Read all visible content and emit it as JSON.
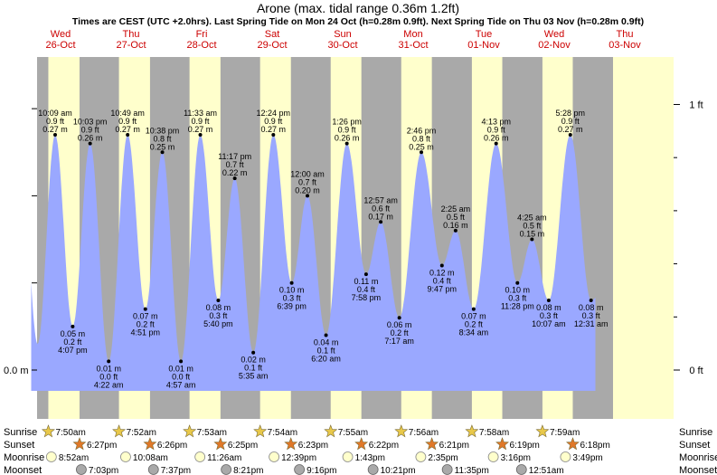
{
  "title": "Arone (max. tidal range 0.36m 1.2ft)",
  "subtitle": "Times are CEST (UTC +2.0hrs). Last Spring Tide on Mon 24 Oct (h=0.28m 0.9ft). Next Spring Tide on Thu 03 Nov (h=0.28m 0.9ft)",
  "colors": {
    "night": "#a9a9a9",
    "day": "#ffffcc",
    "tide": "#9aa8ff",
    "date_text": "#cc0000",
    "sun_fill": "#e8c84a",
    "sunset_fill": "#e07828",
    "moon_fill": "#ffffcc",
    "moonset_fill": "#a9a9a9"
  },
  "chart_data": {
    "type": "area",
    "title": "Arone (max. tidal range 0.36m 1.2ft)",
    "x_unit": "hours since Wed 26-Oct 00:00 CEST",
    "ylabel_left": "0.0 m",
    "right_axis_labels": [
      "1 ft",
      "0 ft"
    ],
    "ylim_m": [
      -0.05,
      0.36
    ],
    "grid": false,
    "days": [
      {
        "weekday": "Wed",
        "date": "26-Oct",
        "sunrise": "7:50am",
        "sunset": "6:27pm",
        "moonrise": "8:52am",
        "moonset": "7:03pm"
      },
      {
        "weekday": "Thu",
        "date": "27-Oct",
        "sunrise": "7:52am",
        "sunset": "6:26pm",
        "moonrise": "10:08am",
        "moonset": "7:37pm"
      },
      {
        "weekday": "Fri",
        "date": "28-Oct",
        "sunrise": "7:53am",
        "sunset": "6:25pm",
        "moonrise": "11:26am",
        "moonset": "8:21pm"
      },
      {
        "weekday": "Sat",
        "date": "29-Oct",
        "sunrise": "7:54am",
        "sunset": "6:23pm",
        "moonrise": "12:39pm",
        "moonset": "9:16pm"
      },
      {
        "weekday": "Sun",
        "date": "30-Oct",
        "sunrise": "7:55am",
        "sunset": "6:22pm",
        "moonrise": "1:43pm",
        "moonset": "10:21pm"
      },
      {
        "weekday": "Mon",
        "date": "31-Oct",
        "sunrise": "7:56am",
        "sunset": "6:21pm",
        "moonrise": "2:35pm",
        "moonset": "11:35pm"
      },
      {
        "weekday": "Tue",
        "date": "01-Nov",
        "sunrise": "7:58am",
        "sunset": "6:19pm",
        "moonrise": "3:16pm",
        "moonset": "12:51am"
      },
      {
        "weekday": "Wed",
        "date": "02-Nov",
        "sunrise": "7:59am",
        "sunset": "6:18pm",
        "moonrise": "3:49pm",
        "moonset": ""
      },
      {
        "weekday": "Thu",
        "date": "03-Nov",
        "sunrise": "",
        "sunset": "",
        "moonrise": "",
        "moonset": ""
      }
    ],
    "tides": [
      {
        "t": 10.15,
        "h_m": 0.27,
        "time": "10:09 am",
        "ft": "0.9 ft",
        "m": "0.27 m",
        "type": "high"
      },
      {
        "t": 16.12,
        "h_m": 0.05,
        "time": "4:07 pm",
        "ft": "0.2 ft",
        "m": "0.05 m",
        "type": "low"
      },
      {
        "t": 22.05,
        "h_m": 0.26,
        "time": "10:03 pm",
        "ft": "0.9 ft",
        "m": "0.26 m",
        "type": "high"
      },
      {
        "t": 28.37,
        "h_m": 0.01,
        "time": "4:22 am",
        "ft": "0.0 ft",
        "m": "0.01 m",
        "type": "low"
      },
      {
        "t": 34.82,
        "h_m": 0.27,
        "time": "10:49 am",
        "ft": "0.9 ft",
        "m": "0.27 m",
        "type": "high"
      },
      {
        "t": 40.85,
        "h_m": 0.07,
        "time": "4:51 pm",
        "ft": "0.2 ft",
        "m": "0.07 m",
        "type": "low"
      },
      {
        "t": 46.63,
        "h_m": 0.25,
        "time": "10:38 pm",
        "ft": "0.8 ft",
        "m": "0.25 m",
        "type": "high"
      },
      {
        "t": 52.95,
        "h_m": 0.01,
        "time": "4:57 am",
        "ft": "0.0 ft",
        "m": "0.01 m",
        "type": "low"
      },
      {
        "t": 59.55,
        "h_m": 0.27,
        "time": "11:33 am",
        "ft": "0.9 ft",
        "m": "0.27 m",
        "type": "high"
      },
      {
        "t": 65.67,
        "h_m": 0.08,
        "time": "5:40 pm",
        "ft": "0.3 ft",
        "m": "0.08 m",
        "type": "low"
      },
      {
        "t": 71.28,
        "h_m": 0.22,
        "time": "11:17 pm",
        "ft": "0.7 ft",
        "m": "0.22 m",
        "type": "high"
      },
      {
        "t": 77.58,
        "h_m": 0.02,
        "time": "5:35 am",
        "ft": "0.1 ft",
        "m": "0.02 m",
        "type": "low"
      },
      {
        "t": 84.4,
        "h_m": 0.27,
        "time": "12:24 pm",
        "ft": "0.9 ft",
        "m": "0.27 m",
        "type": "high"
      },
      {
        "t": 90.65,
        "h_m": 0.1,
        "time": "6:39 pm",
        "ft": "0.3 ft",
        "m": "0.10 m",
        "type": "low"
      },
      {
        "t": 96.0,
        "h_m": 0.2,
        "time": "12:00 am",
        "ft": "0.7 ft",
        "m": "0.20 m",
        "type": "high"
      },
      {
        "t": 102.33,
        "h_m": 0.04,
        "time": "6:20 am",
        "ft": "0.1 ft",
        "m": "0.04 m",
        "type": "low"
      },
      {
        "t": 109.43,
        "h_m": 0.26,
        "time": "1:26 pm",
        "ft": "0.9 ft",
        "m": "0.26 m",
        "type": "high"
      },
      {
        "t": 115.97,
        "h_m": 0.11,
        "time": "7:58 pm",
        "ft": "0.4 ft",
        "m": "0.11 m",
        "type": "low"
      },
      {
        "t": 120.95,
        "h_m": 0.17,
        "time": "12:57 am",
        "ft": "0.6 ft",
        "m": "0.17 m",
        "type": "high"
      },
      {
        "t": 127.28,
        "h_m": 0.06,
        "time": "7:17 am",
        "ft": "0.2 ft",
        "m": "0.06 m",
        "type": "low"
      },
      {
        "t": 134.77,
        "h_m": 0.25,
        "time": "2:46 pm",
        "ft": "0.8 ft",
        "m": "0.25 m",
        "type": "high"
      },
      {
        "t": 141.78,
        "h_m": 0.12,
        "time": "9:47 pm",
        "ft": "0.4 ft",
        "m": "0.12 m",
        "type": "low"
      },
      {
        "t": 146.42,
        "h_m": 0.16,
        "time": "2:25 am",
        "ft": "0.5 ft",
        "m": "0.16 m",
        "type": "high"
      },
      {
        "t": 152.57,
        "h_m": 0.07,
        "time": "8:34 am",
        "ft": "0.2 ft",
        "m": "0.07 m",
        "type": "low"
      },
      {
        "t": 160.22,
        "h_m": 0.26,
        "time": "4:13 pm",
        "ft": "0.9 ft",
        "m": "0.26 m",
        "type": "high"
      },
      {
        "t": 167.47,
        "h_m": 0.1,
        "time": "11:28 pm",
        "ft": "0.3 ft",
        "m": "0.10 m",
        "type": "low"
      },
      {
        "t": 172.42,
        "h_m": 0.15,
        "time": "4:25 am",
        "ft": "0.5 ft",
        "m": "0.15 m",
        "type": "high"
      },
      {
        "t": 178.12,
        "h_m": 0.08,
        "time": "10:07 am",
        "ft": "0.3 ft",
        "m": "0.08 m",
        "type": "low"
      },
      {
        "t": 185.47,
        "h_m": 0.27,
        "time": "5:28 pm",
        "ft": "0.9 ft",
        "m": "0.27 m",
        "type": "high"
      },
      {
        "t": 192.52,
        "h_m": 0.08,
        "time": "12:31 am",
        "ft": "0.3 ft",
        "m": "0.08 m",
        "type": "low"
      }
    ]
  },
  "row_labels": {
    "sunrise": "Sunrise",
    "sunset": "Sunset",
    "moonrise": "Moonrise",
    "moonset": "Moonset"
  }
}
